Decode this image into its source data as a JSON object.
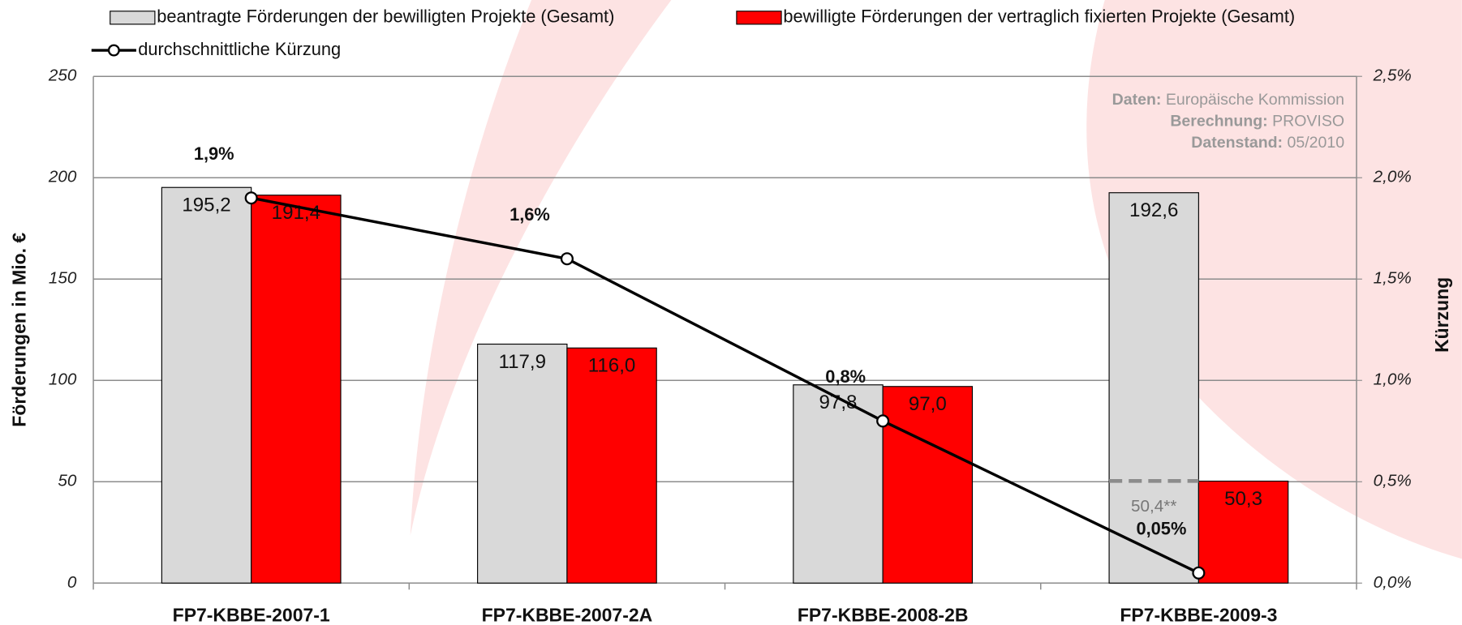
{
  "chart_data": {
    "type": "bar",
    "categories": [
      "FP7-KBBE-2007-1",
      "FP7-KBBE-2007-2A",
      "FP7-KBBE-2008-2B",
      "FP7-KBBE-2009-3"
    ],
    "series": [
      {
        "name": "beantragte Förderungen der bewilligten Projekte (Gesamt)",
        "color": "#d9d9d9",
        "values": [
          195.2,
          117.9,
          97.8,
          192.6
        ],
        "value_labels": [
          "195,2",
          "117,9",
          "97,8",
          "192,6"
        ]
      },
      {
        "name": "bewilligte Förderungen der vertraglich fixierten Projekte (Gesamt)",
        "color": "#ff0000",
        "values": [
          191.4,
          116.0,
          97.0,
          50.3
        ],
        "value_labels": [
          "191,4",
          "116,0",
          "97,0",
          "50,3"
        ]
      },
      {
        "name": "durchschnittliche Kürzung",
        "type": "line",
        "axis": "y2",
        "color": "#000000",
        "values": [
          1.9,
          1.6,
          0.8,
          0.05
        ],
        "value_labels": [
          "1,9%",
          "1,6%",
          "0,8%",
          "0,05%"
        ]
      }
    ],
    "annotation": {
      "category": 3,
      "value": 50.4,
      "label": "50,4**"
    },
    "ylabel": "Förderungen in Mio. €",
    "y2label": "Kürzung",
    "ylim": [
      0,
      250
    ],
    "yticks": [
      0,
      50,
      100,
      150,
      200,
      250
    ],
    "y2lim": [
      0,
      2.5
    ],
    "y2ticks": [
      {
        "value": 0,
        "label": "0,0%"
      },
      {
        "value": 0.5,
        "label": "0,5%"
      },
      {
        "value": 1.0,
        "label": "1,0%"
      },
      {
        "value": 1.5,
        "label": "1,5%"
      },
      {
        "value": 2.0,
        "label": "2,0%"
      },
      {
        "value": 2.5,
        "label": "2,5%"
      }
    ],
    "grid": true,
    "source": [
      {
        "key": "Daten:",
        "text": "Europäische Kommission"
      },
      {
        "key": "Berechnung:",
        "text": "PROVISO"
      },
      {
        "key": "Datenstand:",
        "text": "05/2010"
      }
    ]
  }
}
